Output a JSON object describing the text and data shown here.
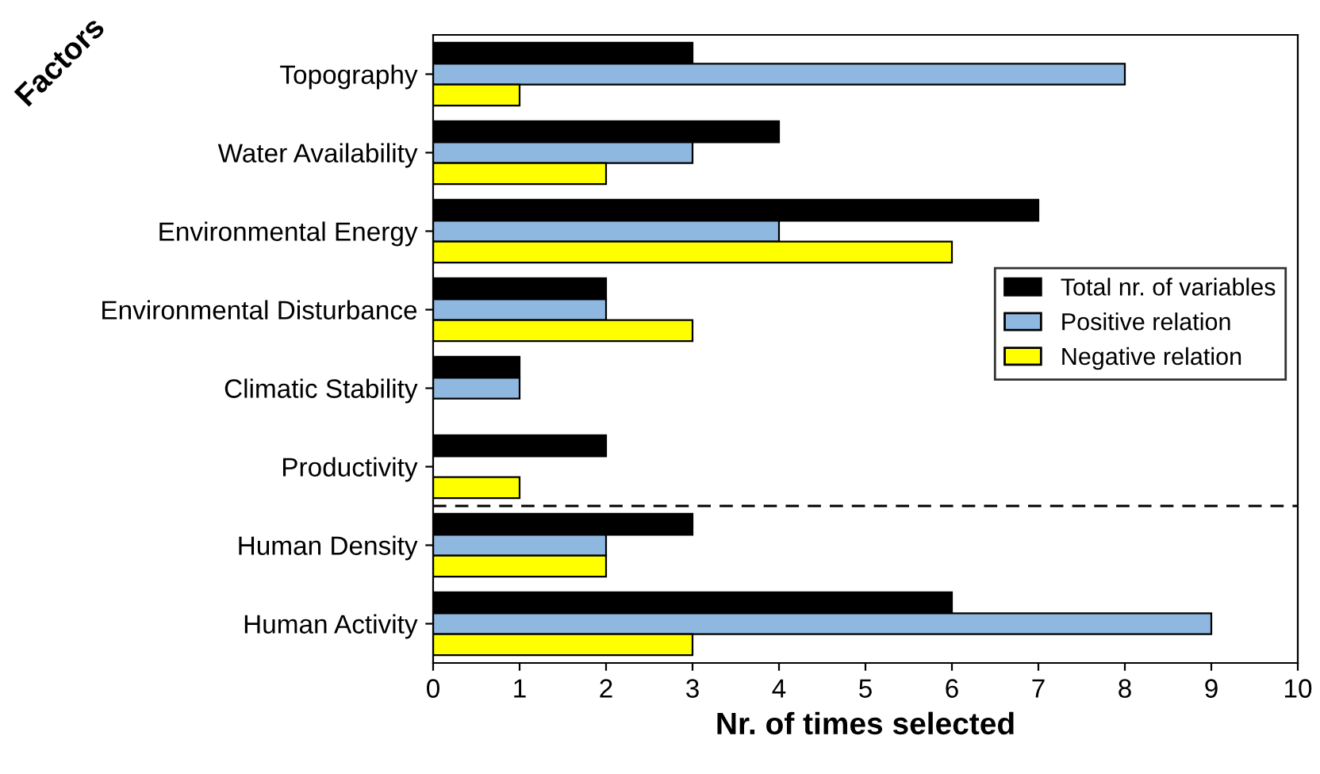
{
  "chart_data": {
    "type": "bar",
    "orientation": "horizontal",
    "xlabel": "Nr. of times selected",
    "ylabel": "Factors",
    "categories": [
      "Topography",
      "Water Availability",
      "Environmental Energy",
      "Environmental Disturbance",
      "Climatic Stability",
      "Productivity",
      "Human Density",
      "Human Activity"
    ],
    "series": [
      {
        "name": "Total nr. of variables",
        "color": "#000000",
        "values": [
          3,
          4,
          7,
          2,
          1,
          2,
          3,
          6
        ]
      },
      {
        "name": "Positive relation",
        "color": "#8fb8e0",
        "values": [
          8,
          3,
          4,
          2,
          1,
          null,
          2,
          9
        ]
      },
      {
        "name": "Negative relation",
        "color": "#ffff00",
        "values": [
          1,
          2,
          6,
          3,
          null,
          1,
          2,
          3
        ]
      }
    ],
    "xlim": [
      0,
      10
    ],
    "xticks": [
      0,
      1,
      2,
      3,
      4,
      5,
      6,
      7,
      8,
      9,
      10
    ],
    "legend": "right",
    "grid": false
  }
}
